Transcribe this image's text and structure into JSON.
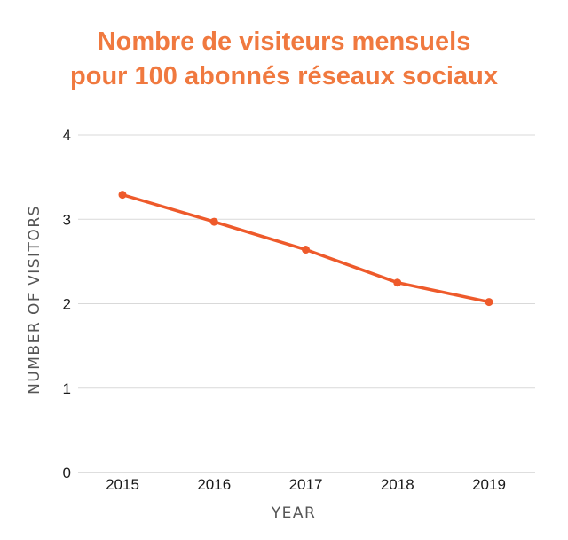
{
  "chart_data": {
    "type": "line",
    "title_lines": [
      "Nombre de visiteurs mensuels",
      "pour 100 abonnés réseaux sociaux"
    ],
    "xlabel": "YEAR",
    "ylabel": "NUMBER OF VISITORS",
    "categories": [
      "2015",
      "2016",
      "2017",
      "2018",
      "2019"
    ],
    "series": [
      {
        "values": [
          3.29,
          2.97,
          2.64,
          2.25,
          2.02
        ]
      }
    ],
    "ylim": [
      0,
      4
    ],
    "yticks": [
      "0",
      "1",
      "2",
      "3",
      "4"
    ],
    "grid": true,
    "colors": {
      "title": "#f0793f",
      "line": "#ee5a2b",
      "grid": "#d9d9d9"
    }
  }
}
